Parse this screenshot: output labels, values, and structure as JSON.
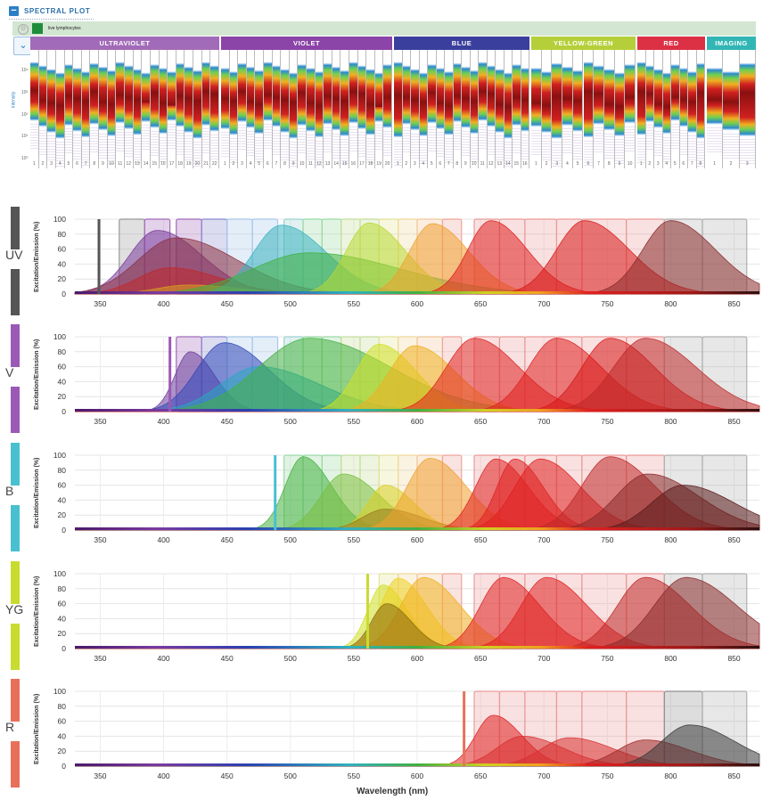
{
  "header": {
    "title": "SPECTRAL PLOT"
  },
  "filter": {
    "population": "live lymphocytes",
    "color": "#1e8c3a"
  },
  "heatmap": {
    "y_axis_label": "Intensity",
    "y_ticks": [
      "10⁴",
      "10³",
      "10²",
      "10¹",
      "10⁰"
    ],
    "lasers": [
      {
        "name": "ULTRAVIOLET",
        "color": "#a26bb9",
        "channels": [
          "1",
          "2",
          "3",
          "4",
          "5",
          "6",
          "7",
          "8",
          "9",
          "10",
          "11",
          "12",
          "13",
          "14",
          "15",
          "16",
          "17",
          "18",
          "19",
          "20",
          "21",
          "22"
        ]
      },
      {
        "name": "VIOLET",
        "color": "#8b44a8",
        "channels": [
          "1",
          "2",
          "3",
          "4",
          "5",
          "6",
          "7",
          "8",
          "9",
          "10",
          "11",
          "12",
          "13",
          "14",
          "15",
          "16",
          "17",
          "18",
          "19",
          "20"
        ]
      },
      {
        "name": "BLUE",
        "color": "#3a3e9c",
        "channels": [
          "1",
          "2",
          "3",
          "4",
          "5",
          "6",
          "7",
          "8",
          "9",
          "10",
          "11",
          "12",
          "13",
          "14",
          "15",
          "16"
        ]
      },
      {
        "name": "YELLOW-GREEN",
        "color": "#b5cf3a",
        "channels": [
          "1",
          "2",
          "3",
          "4",
          "5",
          "6",
          "7",
          "8",
          "9",
          "10"
        ]
      },
      {
        "name": "RED",
        "color": "#dc3145",
        "channels": [
          "1",
          "2",
          "3",
          "4",
          "5",
          "6",
          "7",
          "8"
        ]
      },
      {
        "name": "IMAGING",
        "color": "#31b6b5",
        "channels": [
          "1",
          "2",
          "3"
        ]
      }
    ]
  },
  "chart_data": {
    "type": "area",
    "xlabel": "Wavelength (nm)",
    "ylabel": "Excitation/Emission (%)",
    "xlim": [
      330,
      870
    ],
    "ylim": [
      0,
      100
    ],
    "x_ticks": [
      350,
      400,
      450,
      500,
      550,
      600,
      650,
      700,
      750,
      800,
      850
    ],
    "y_ticks": [
      0,
      20,
      40,
      60,
      80,
      100
    ],
    "panels": [
      {
        "label": "UV",
        "laser_nm": 349,
        "laser_color": "#555555",
        "detector_bands": [
          [
            365,
            385,
            "#999999"
          ],
          [
            385,
            405,
            "#a26bb9"
          ],
          [
            410,
            430,
            "#a26bb9"
          ],
          [
            430,
            450,
            "#8c8ad0"
          ],
          [
            450,
            470,
            "#a6c8ea"
          ],
          [
            470,
            490,
            "#a6c8ea"
          ],
          [
            495,
            510,
            "#9bd2d0"
          ],
          [
            510,
            525,
            "#9bd9a6"
          ],
          [
            525,
            540,
            "#9bd9a6"
          ],
          [
            540,
            555,
            "#c5de9a"
          ],
          [
            555,
            570,
            "#c5de9a"
          ],
          [
            570,
            585,
            "#e3e399"
          ],
          [
            585,
            600,
            "#f1d79a"
          ],
          [
            600,
            620,
            "#f1c79a"
          ],
          [
            620,
            635,
            "#efa59a"
          ],
          [
            645,
            665,
            "#ec9a9a"
          ],
          [
            665,
            685,
            "#ec9a9a"
          ],
          [
            685,
            710,
            "#ec9a9a"
          ],
          [
            710,
            730,
            "#ec9a9a"
          ],
          [
            730,
            765,
            "#ec9a9a"
          ],
          [
            765,
            795,
            "#ec9a9a"
          ],
          [
            795,
            825,
            "#b0b0b0"
          ],
          [
            825,
            860,
            "#b0b0b0"
          ]
        ],
        "peaks": [
          [
            395,
            22,
            85,
            "#7a3a9a"
          ],
          [
            410,
            30,
            75,
            "#8a3040"
          ],
          [
            405,
            25,
            35,
            "#c0282a"
          ],
          [
            420,
            25,
            12,
            "#d8a020"
          ],
          [
            493,
            22,
            92,
            "#38b2c0"
          ],
          [
            515,
            45,
            55,
            "#44b040"
          ],
          [
            562,
            18,
            95,
            "#b8d830"
          ],
          [
            612,
            18,
            94,
            "#f0a030"
          ],
          [
            658,
            18,
            98,
            "#e02020"
          ],
          [
            732,
            22,
            98,
            "#d81818"
          ],
          [
            800,
            22,
            98,
            "#8a2a2a"
          ]
        ]
      },
      {
        "label": "V",
        "laser_nm": 405,
        "laser_color": "#9b59b6",
        "detector_bands": [
          [
            410,
            430,
            "#a26bb9"
          ],
          [
            430,
            450,
            "#8c8ad0"
          ],
          [
            450,
            470,
            "#a6c8ea"
          ],
          [
            470,
            490,
            "#a6c8ea"
          ],
          [
            495,
            510,
            "#9bd2d0"
          ],
          [
            510,
            525,
            "#9bd9a6"
          ],
          [
            525,
            540,
            "#9bd9a6"
          ],
          [
            540,
            555,
            "#c5de9a"
          ],
          [
            555,
            570,
            "#c5de9a"
          ],
          [
            570,
            585,
            "#e3e399"
          ],
          [
            585,
            600,
            "#f1d79a"
          ],
          [
            600,
            620,
            "#f1c79a"
          ],
          [
            620,
            635,
            "#efa59a"
          ],
          [
            645,
            665,
            "#ec9a9a"
          ],
          [
            665,
            685,
            "#ec9a9a"
          ],
          [
            685,
            710,
            "#ec9a9a"
          ],
          [
            710,
            730,
            "#ec9a9a"
          ],
          [
            730,
            765,
            "#ec9a9a"
          ],
          [
            765,
            795,
            "#ec9a9a"
          ],
          [
            795,
            825,
            "#b0b0b0"
          ],
          [
            825,
            860,
            "#b0b0b0"
          ]
        ],
        "peaks": [
          [
            421,
            12,
            80,
            "#6a3a9a"
          ],
          [
            448,
            22,
            92,
            "#3048b8"
          ],
          [
            475,
            30,
            60,
            "#28a8c0"
          ],
          [
            515,
            40,
            98,
            "#44b040"
          ],
          [
            570,
            18,
            90,
            "#d0e020"
          ],
          [
            598,
            20,
            88,
            "#f0b020"
          ],
          [
            645,
            22,
            98,
            "#e02020"
          ],
          [
            710,
            22,
            98,
            "#e02020"
          ],
          [
            752,
            22,
            98,
            "#d81818"
          ],
          [
            780,
            25,
            98,
            "#c02828"
          ]
        ]
      },
      {
        "label": "B",
        "laser_nm": 488,
        "laser_color": "#48c0d0",
        "detector_bands": [
          [
            495,
            510,
            "#9bd9a6"
          ],
          [
            510,
            525,
            "#9bd9a6"
          ],
          [
            525,
            540,
            "#9bd9a6"
          ],
          [
            540,
            555,
            "#c5de9a"
          ],
          [
            555,
            570,
            "#c5de9a"
          ],
          [
            570,
            585,
            "#e3e399"
          ],
          [
            585,
            600,
            "#f1d79a"
          ],
          [
            600,
            620,
            "#f1c79a"
          ],
          [
            620,
            635,
            "#efa59a"
          ],
          [
            645,
            665,
            "#ec9a9a"
          ],
          [
            665,
            685,
            "#ec9a9a"
          ],
          [
            685,
            710,
            "#ec9a9a"
          ],
          [
            710,
            730,
            "#ec9a9a"
          ],
          [
            730,
            765,
            "#ec9a9a"
          ],
          [
            765,
            795,
            "#ec9a9a"
          ],
          [
            795,
            825,
            "#b0b0b0"
          ],
          [
            825,
            860,
            "#b0b0b0"
          ]
        ],
        "peaks": [
          [
            510,
            14,
            98,
            "#44b040"
          ],
          [
            542,
            18,
            75,
            "#7ac040"
          ],
          [
            575,
            14,
            60,
            "#d8d020"
          ],
          [
            575,
            18,
            28,
            "#9a7a20"
          ],
          [
            610,
            18,
            96,
            "#f0a030"
          ],
          [
            662,
            16,
            95,
            "#e02020"
          ],
          [
            677,
            14,
            95,
            "#e02020"
          ],
          [
            697,
            20,
            95,
            "#e02020"
          ],
          [
            752,
            22,
            98,
            "#c02828"
          ],
          [
            782,
            25,
            75,
            "#8a2a2a"
          ],
          [
            810,
            25,
            60,
            "#5a1a1a"
          ]
        ]
      },
      {
        "label": "YG",
        "laser_nm": 561,
        "laser_color": "#c8dc30",
        "detector_bands": [
          [
            570,
            585,
            "#e3e399"
          ],
          [
            585,
            600,
            "#f1d79a"
          ],
          [
            600,
            620,
            "#f1c79a"
          ],
          [
            620,
            635,
            "#efa59a"
          ],
          [
            645,
            665,
            "#ec9a9a"
          ],
          [
            665,
            685,
            "#ec9a9a"
          ],
          [
            685,
            710,
            "#ec9a9a"
          ],
          [
            710,
            730,
            "#ec9a9a"
          ],
          [
            730,
            765,
            "#ec9a9a"
          ],
          [
            765,
            795,
            "#ec9a9a"
          ],
          [
            795,
            825,
            "#b0b0b0"
          ],
          [
            825,
            860,
            "#b0b0b0"
          ]
        ],
        "peaks": [
          [
            573,
            12,
            85,
            "#d0e020"
          ],
          [
            585,
            14,
            94,
            "#f0d020"
          ],
          [
            605,
            18,
            95,
            "#f0b020"
          ],
          [
            576,
            12,
            60,
            "#8a6a10"
          ],
          [
            668,
            18,
            95,
            "#e02020"
          ],
          [
            702,
            20,
            95,
            "#e02020"
          ],
          [
            780,
            22,
            95,
            "#c02828"
          ],
          [
            812,
            25,
            95,
            "#8a2a2a"
          ]
        ]
      },
      {
        "label": "R",
        "laser_nm": 637,
        "laser_color": "#e8705a",
        "detector_bands": [
          [
            645,
            665,
            "#ec9a9a"
          ],
          [
            665,
            685,
            "#ec9a9a"
          ],
          [
            685,
            710,
            "#ec9a9a"
          ],
          [
            710,
            730,
            "#ec9a9a"
          ],
          [
            730,
            765,
            "#ec9a9a"
          ],
          [
            765,
            795,
            "#ec9a9a"
          ],
          [
            795,
            825,
            "#909090"
          ],
          [
            825,
            860,
            "#b0b0b0"
          ]
        ],
        "peaks": [
          [
            660,
            14,
            68,
            "#e02020"
          ],
          [
            683,
            20,
            40,
            "#d83030"
          ],
          [
            720,
            22,
            38,
            "#d83030"
          ],
          [
            780,
            22,
            35,
            "#a02828"
          ],
          [
            815,
            22,
            55,
            "#3a3a3a"
          ]
        ]
      }
    ]
  }
}
